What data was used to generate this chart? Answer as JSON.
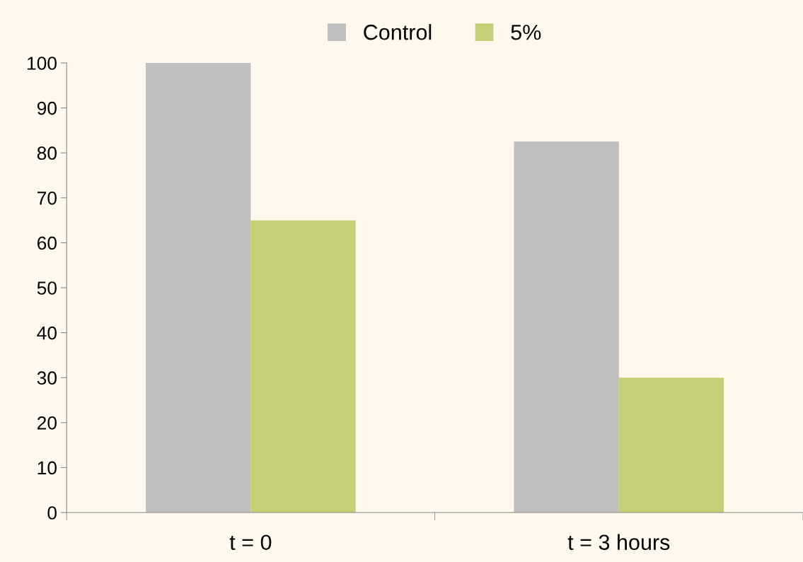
{
  "chart_data": {
    "type": "bar",
    "categories": [
      "t = 0",
      "t = 3 hours"
    ],
    "series": [
      {
        "name": "Control",
        "color": "#bfbfbf",
        "values": [
          100,
          82.5
        ]
      },
      {
        "name": "5%",
        "color": "#c6cf76",
        "values": [
          65,
          30
        ]
      }
    ],
    "ylim": [
      0,
      100
    ],
    "yticks": [
      0,
      10,
      20,
      30,
      40,
      50,
      60,
      70,
      80,
      90,
      100
    ],
    "grid": false,
    "legend": "top"
  }
}
